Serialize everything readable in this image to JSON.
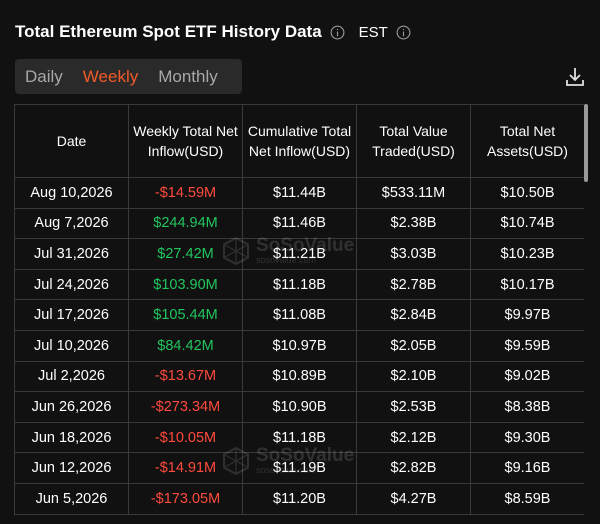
{
  "header": {
    "title": "Total Ethereum Spot ETF History Data",
    "timezone": "EST",
    "info_icon": "info-circle-icon",
    "download_icon": "download-icon"
  },
  "tabs": [
    {
      "label": "Daily",
      "active": false
    },
    {
      "label": "Weekly",
      "active": true
    },
    {
      "label": "Monthly",
      "active": false
    }
  ],
  "colors": {
    "accent": "#f15a29",
    "negative": "#ff4a3d",
    "positive": "#22c55e",
    "background": "#111111",
    "tab_background": "#2a2a2a",
    "border": "#3a3a3a"
  },
  "table": {
    "headers": [
      "Date",
      "Weekly Total Net Inflow(USD)",
      "Cumulative Total Net Inflow(USD)",
      "Total Value Traded(USD)",
      "Total Net Assets(USD)"
    ],
    "rows": [
      {
        "date": "Aug 10,2026",
        "weekly": "-$14.59M",
        "sign": "neg",
        "cumulative": "$11.44B",
        "traded": "$533.11M",
        "assets": "$10.50B"
      },
      {
        "date": "Aug 7,2026",
        "weekly": "$244.94M",
        "sign": "pos",
        "cumulative": "$11.46B",
        "traded": "$2.38B",
        "assets": "$10.74B"
      },
      {
        "date": "Jul 31,2026",
        "weekly": "$27.42M",
        "sign": "pos",
        "cumulative": "$11.21B",
        "traded": "$3.03B",
        "assets": "$10.23B"
      },
      {
        "date": "Jul 24,2026",
        "weekly": "$103.90M",
        "sign": "pos",
        "cumulative": "$11.18B",
        "traded": "$2.78B",
        "assets": "$10.17B"
      },
      {
        "date": "Jul 17,2026",
        "weekly": "$105.44M",
        "sign": "pos",
        "cumulative": "$11.08B",
        "traded": "$2.84B",
        "assets": "$9.97B"
      },
      {
        "date": "Jul 10,2026",
        "weekly": "$84.42M",
        "sign": "pos",
        "cumulative": "$10.97B",
        "traded": "$2.05B",
        "assets": "$9.59B"
      },
      {
        "date": "Jul 2,2026",
        "weekly": "-$13.67M",
        "sign": "neg",
        "cumulative": "$10.89B",
        "traded": "$2.10B",
        "assets": "$9.02B"
      },
      {
        "date": "Jun 26,2026",
        "weekly": "-$273.34M",
        "sign": "neg",
        "cumulative": "$10.90B",
        "traded": "$2.53B",
        "assets": "$8.38B"
      },
      {
        "date": "Jun 18,2026",
        "weekly": "-$10.05M",
        "sign": "neg",
        "cumulative": "$11.18B",
        "traded": "$2.12B",
        "assets": "$9.30B"
      },
      {
        "date": "Jun 12,2026",
        "weekly": "-$14.91M",
        "sign": "neg",
        "cumulative": "$11.19B",
        "traded": "$2.82B",
        "assets": "$9.16B"
      },
      {
        "date": "Jun 5,2026",
        "weekly": "-$173.05M",
        "sign": "neg",
        "cumulative": "$11.20B",
        "traded": "$4.27B",
        "assets": "$8.59B"
      }
    ]
  },
  "watermark": {
    "brand": "SoSoValue",
    "site": "sosovalue.com"
  }
}
